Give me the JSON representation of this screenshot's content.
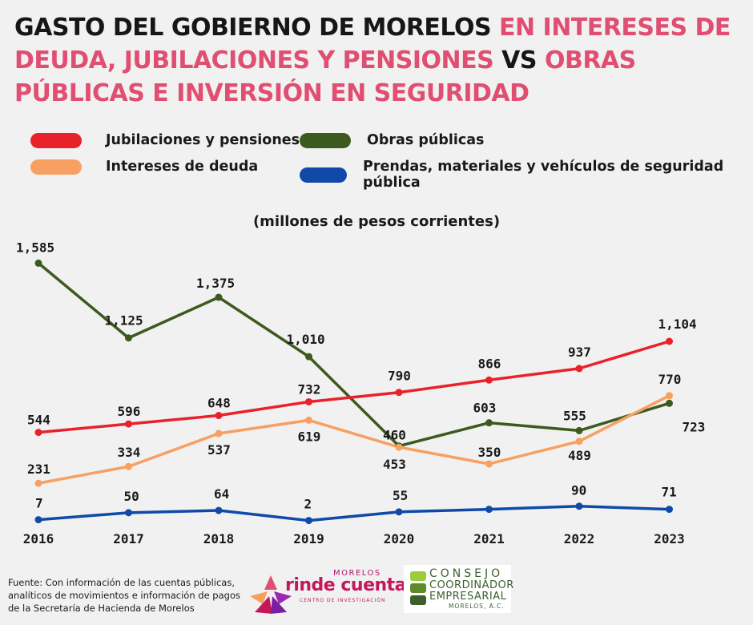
{
  "title": {
    "part1": "GASTO DEL GOBIERNO DE MORELOS ",
    "part2": "EN INTERESES DE DEUDA, JUBILACIONES Y PENSIONES",
    "part3": " VS ",
    "part4": "OBRAS PÚBLICAS E INVERSIÓN EN SEGURIDAD",
    "dark_color": "#161616",
    "accent_color": "#e04e72"
  },
  "legend": [
    {
      "label": "Jubilaciones y pensiones",
      "color": "#e8222a"
    },
    {
      "label": "Intereses de deuda",
      "color": "#f7a062"
    },
    {
      "label": "Obras públicas",
      "color": "#3d5a1e"
    },
    {
      "label": "Prendas, materiales y vehículos de seguridad pública",
      "color": "#0f4aa8"
    }
  ],
  "chart_data": {
    "type": "line",
    "units_label": "(millones de pesos corrientes)",
    "x": [
      "2016",
      "2017",
      "2018",
      "2019",
      "2020",
      "2021",
      "2022",
      "2023"
    ],
    "series": [
      {
        "name": "Obras públicas",
        "color": "#3d5a1e",
        "values": [
          1585,
          1125,
          1375,
          1010,
          460,
          603,
          555,
          723
        ]
      },
      {
        "name": "Jubilaciones y pensiones",
        "color": "#e8222a",
        "values": [
          544,
          596,
          648,
          732,
          790,
          866,
          937,
          1104
        ]
      },
      {
        "name": "Intereses de deuda",
        "color": "#f7a062",
        "values": [
          231,
          334,
          537,
          619,
          453,
          350,
          489,
          770
        ]
      },
      {
        "name": "Prendas, materiales y vehículos de seguridad pública",
        "color": "#0f4aa8",
        "values": [
          7,
          50,
          64,
          2,
          55,
          71,
          90,
          71
        ]
      }
    ],
    "data_labels": [
      [
        "1,585",
        "1,125",
        "1,375",
        "1,010",
        "460",
        "603",
        "555",
        "723"
      ],
      [
        "544",
        "596",
        "648",
        "732",
        "790",
        "866",
        "937",
        "1,104"
      ],
      [
        "231",
        "334",
        "537",
        "619",
        "453",
        "350",
        "489",
        "770"
      ],
      [
        "7",
        "50",
        "64",
        "2",
        "55",
        "",
        "90",
        "71"
      ]
    ],
    "grid": false,
    "legend_position": "top"
  },
  "source": "Fuente: Con información de las cuentas públicas, analíticos de movimientos  e información de pagos de la Secretaría de Hacienda de Morelos",
  "logos": {
    "rinde_top": "MORELOS",
    "rinde_main": "rinde cuentas",
    "rinde_sub": "CENTRO DE INVESTIGACIÓN",
    "cce_line1": "CONSEJO",
    "cce_line2": "COORDINADOR",
    "cce_line3": "EMPRESARIAL",
    "cce_line4": "MORELOS, A.C."
  }
}
